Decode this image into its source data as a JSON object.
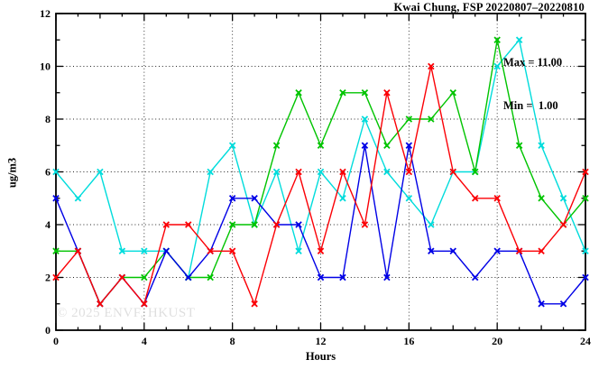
{
  "header": {
    "title": "Kwai Chung, FSP 20220807–20220810"
  },
  "annotation": {
    "max_label": "Max = 11.00",
    "min_label": "Min =  1.00"
  },
  "watermark": "© 2025 ENVF, HKUST",
  "chart_data": {
    "type": "line",
    "title": "Kwai Chung, FSP 20220807–20220810",
    "xlabel": "Hours",
    "ylabel": "ug/m3",
    "xlim": [
      0,
      24
    ],
    "ylim": [
      0,
      12
    ],
    "x_ticks_labeled": [
      0,
      4,
      8,
      12,
      16,
      20,
      24
    ],
    "y_ticks_labeled": [
      0,
      2,
      4,
      6,
      8,
      10,
      12
    ],
    "grid_x": [
      4,
      8,
      12,
      16,
      20
    ],
    "grid_y": [
      2,
      4,
      6,
      8,
      10
    ],
    "grid_style": "dotted",
    "legend": "none",
    "stats": {
      "max": 11.0,
      "min": 1.0
    },
    "x": [
      0,
      1,
      2,
      3,
      4,
      5,
      6,
      7,
      8,
      9,
      10,
      11,
      12,
      13,
      14,
      15,
      16,
      17,
      18,
      19,
      20,
      21,
      22,
      23,
      24
    ],
    "series": [
      {
        "name": "series-cyan",
        "color": "#00dcdc",
        "values": [
          6,
          5,
          6,
          3,
          3,
          3,
          2,
          6,
          7,
          4,
          6,
          3,
          6,
          5,
          8,
          6,
          5,
          4,
          6,
          6,
          10,
          11,
          7,
          5,
          3
        ]
      },
      {
        "name": "series-green",
        "color": "#00c400",
        "values": [
          3,
          3,
          1,
          2,
          2,
          3,
          2,
          2,
          4,
          4,
          7,
          9,
          7,
          9,
          9,
          7,
          8,
          8,
          9,
          6,
          11,
          7,
          5,
          4,
          5
        ]
      },
      {
        "name": "series-blue",
        "color": "#0000e6",
        "values": [
          5,
          3,
          1,
          2,
          1,
          3,
          2,
          3,
          5,
          5,
          4,
          4,
          2,
          2,
          7,
          2,
          7,
          3,
          3,
          2,
          3,
          3,
          1,
          1,
          2
        ]
      },
      {
        "name": "series-red",
        "color": "#fb0006",
        "values": [
          2,
          3,
          1,
          2,
          1,
          4,
          4,
          3,
          3,
          1,
          4,
          6,
          3,
          6,
          4,
          9,
          6,
          10,
          6,
          5,
          5,
          3,
          3,
          4,
          6
        ]
      }
    ]
  }
}
